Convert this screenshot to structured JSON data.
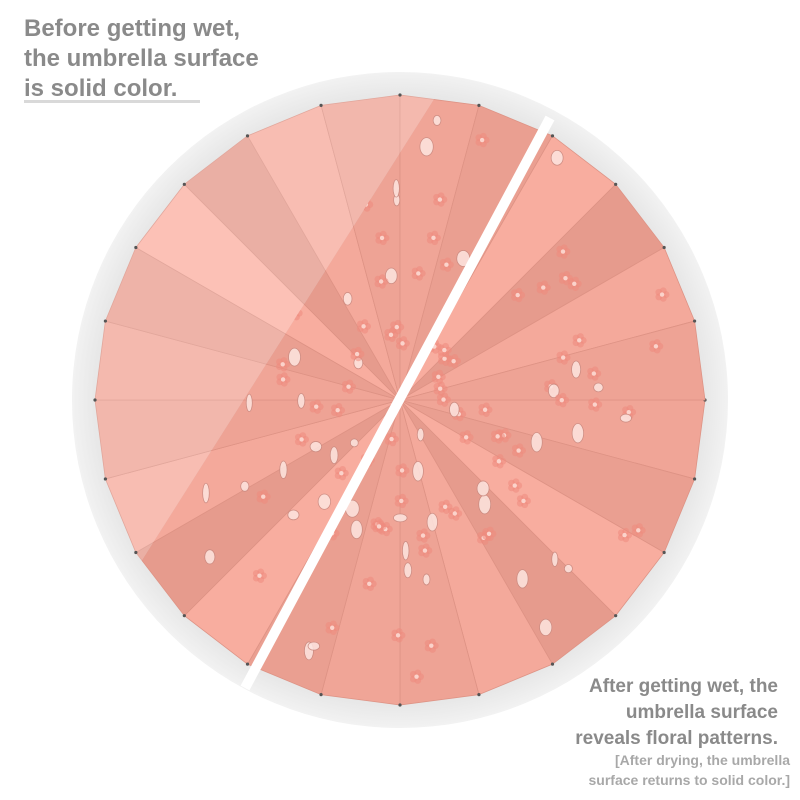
{
  "captions": {
    "before": {
      "line1": "Before getting wet,",
      "line2": "the umbrella surface",
      "line3": "is solid color."
    },
    "after": {
      "line1": "After getting wet, the",
      "line2": "umbrella surface",
      "line3": "reveals floral patterns."
    },
    "note": {
      "line1": "[After drying, the umbrella",
      "line2": "surface returns to solid color.]"
    }
  },
  "umbrella": {
    "panel_count": 24,
    "color_dry": "#f4b9ae",
    "color_wet": "#f0a597",
    "flower_color": "#ee8a7e",
    "rim_color": "#ececec"
  }
}
